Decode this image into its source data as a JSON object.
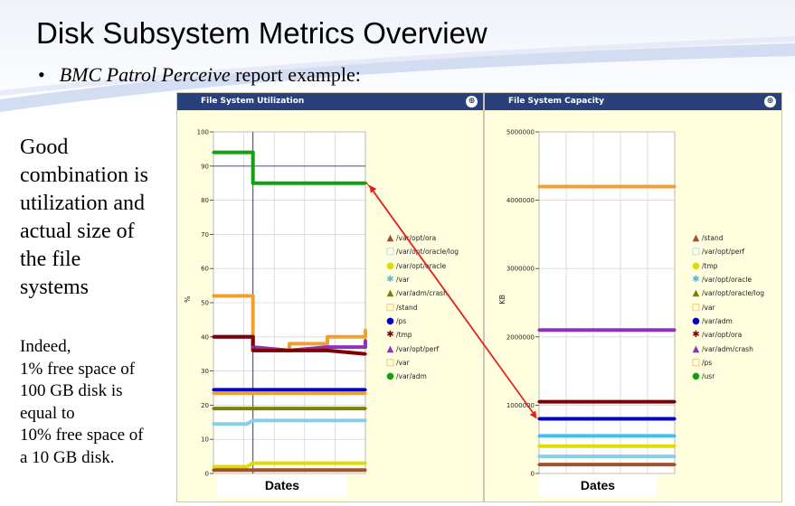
{
  "slide": {
    "title": "Disk Subsystem Metrics Overview",
    "bullet_italic": "BMC Patrol Perceive",
    "bullet_rest": " report example:",
    "left_text_big": [
      "Good",
      "combination is",
      "utilization and",
      "actual size of",
      "the file",
      "systems"
    ],
    "left_text_small": [
      "Indeed,",
      "1% free space of",
      "100 GB disk is",
      "equal to",
      "10% free space of",
      "a 10 GB disk."
    ]
  },
  "charts": [
    {
      "header": "File System Utilization",
      "icon": "zoom-icon",
      "dates_label": "Dates",
      "legend": [
        {
          "label": "/var/opt/ora",
          "symbol": "▲",
          "color": "#a0522d"
        },
        {
          "label": "/var/opt/oracle/log",
          "symbol": "□",
          "color": "#87ceeb"
        },
        {
          "label": "/var/opt/oracle",
          "symbol": "●",
          "color": "#dddd00"
        },
        {
          "label": "/var",
          "symbol": "✱",
          "color": "#40c0f0"
        },
        {
          "label": "/var/adm/crash",
          "symbol": "▲",
          "color": "#808000"
        },
        {
          "label": "/stand",
          "symbol": "□",
          "color": "#f0a030"
        },
        {
          "label": "/ps",
          "symbol": "●",
          "color": "#0000c0"
        },
        {
          "label": "/tmp",
          "symbol": "✱",
          "color": "#800000"
        },
        {
          "label": "/var/opt/perf",
          "symbol": "▲",
          "color": "#9030c0"
        },
        {
          "label": "/var",
          "symbol": "□",
          "color": "#f0a030"
        },
        {
          "label": "/var/adm",
          "symbol": "●",
          "color": "#10a010"
        }
      ]
    },
    {
      "header": "File System Capacity",
      "icon": "zoom-icon",
      "dates_label": "Dates",
      "legend": [
        {
          "label": "/stand",
          "symbol": "▲",
          "color": "#a0522d"
        },
        {
          "label": "/var/opt/perf",
          "symbol": "□",
          "color": "#87ceeb"
        },
        {
          "label": "/tmp",
          "symbol": "●",
          "color": "#dddd00"
        },
        {
          "label": "/var/opt/oracle",
          "symbol": "✱",
          "color": "#40c0f0"
        },
        {
          "label": "/var/opt/oracle/log",
          "symbol": "▲",
          "color": "#808000"
        },
        {
          "label": "/var",
          "symbol": "□",
          "color": "#f0a030"
        },
        {
          "label": "/var/adm",
          "symbol": "●",
          "color": "#0000c0"
        },
        {
          "label": "/var/opt/ora",
          "symbol": "✱",
          "color": "#800000"
        },
        {
          "label": "/var/adm/crash",
          "symbol": "▲",
          "color": "#9030c0"
        },
        {
          "label": "/ps",
          "symbol": "□",
          "color": "#f0a030"
        },
        {
          "label": "/usr",
          "symbol": "●",
          "color": "#10a010"
        }
      ]
    }
  ],
  "chart_data": [
    {
      "type": "line",
      "title": "File System Utilization",
      "xlabel": "Dates",
      "ylabel": "%",
      "ylim": [
        0,
        100
      ],
      "yticks": [
        "0",
        "10",
        "20",
        "30",
        "40",
        "50",
        "60",
        "70",
        "80",
        "90",
        "100"
      ],
      "grid": true,
      "x": [
        0,
        0.22,
        0.26,
        0.5,
        0.75,
        1.0
      ],
      "series": [
        {
          "name": "/var/adm",
          "color": "#10a010",
          "values": [
            94,
            94,
            85,
            85,
            85,
            85
          ]
        },
        {
          "name": "/var",
          "color": "#f0a030",
          "values": [
            52,
            52,
            36,
            38,
            40,
            42
          ]
        },
        {
          "name": "/var/opt/perf",
          "color": "#9030c0",
          "values": [
            40,
            40,
            37,
            36,
            37,
            39
          ]
        },
        {
          "name": "/tmp",
          "color": "#800000",
          "values": [
            40,
            40,
            36,
            36,
            36,
            35
          ]
        },
        {
          "name": "/ps",
          "color": "#0000c0",
          "values": [
            24.5,
            24.5,
            24.5,
            24.5,
            24.5,
            24.5
          ]
        },
        {
          "name": "/stand",
          "color": "#f0a030",
          "values": [
            23.5,
            23.5,
            23.5,
            23.5,
            23.5,
            23.5
          ]
        },
        {
          "name": "/var/adm/crash",
          "color": "#808000",
          "values": [
            19,
            19,
            19,
            19,
            19,
            19
          ]
        },
        {
          "name": "/var/opt/oracle/log",
          "color": "#87ceeb",
          "values": [
            14.5,
            14.5,
            15.5,
            15.5,
            15.5,
            15.5
          ]
        },
        {
          "name": "/var/opt/oracle",
          "color": "#dddd00",
          "values": [
            2,
            2,
            3,
            3,
            3,
            3
          ]
        },
        {
          "name": "/var/opt/ora",
          "color": "#a0522d",
          "values": [
            1,
            1,
            1,
            1,
            1,
            1
          ]
        }
      ]
    },
    {
      "type": "line",
      "title": "File System Capacity",
      "xlabel": "Dates",
      "ylabel": "KB",
      "ylim": [
        0,
        5000000
      ],
      "yticks": [
        "0",
        "1000000",
        "2000000",
        "3000000",
        "4000000",
        "5000000"
      ],
      "grid": true,
      "x": [
        0,
        1
      ],
      "series": [
        {
          "name": "/var",
          "color": "#f0a030",
          "values": [
            4200000,
            4200000
          ]
        },
        {
          "name": "/var/adm/crash",
          "color": "#9030c0",
          "values": [
            2100000,
            2100000
          ]
        },
        {
          "name": "/var/opt/ora",
          "color": "#800000",
          "values": [
            1050000,
            1050000
          ]
        },
        {
          "name": "/var/adm",
          "color": "#0000c0",
          "values": [
            800000,
            800000
          ]
        },
        {
          "name": "/var/opt/oracle",
          "color": "#40c0f0",
          "values": [
            550000,
            550000
          ]
        },
        {
          "name": "/tmp",
          "color": "#dddd00",
          "values": [
            400000,
            400000
          ]
        },
        {
          "name": "/var/opt/perf",
          "color": "#87ceeb",
          "values": [
            250000,
            250000
          ]
        },
        {
          "name": "/stand",
          "color": "#a0522d",
          "values": [
            130000,
            130000
          ]
        }
      ]
    }
  ]
}
